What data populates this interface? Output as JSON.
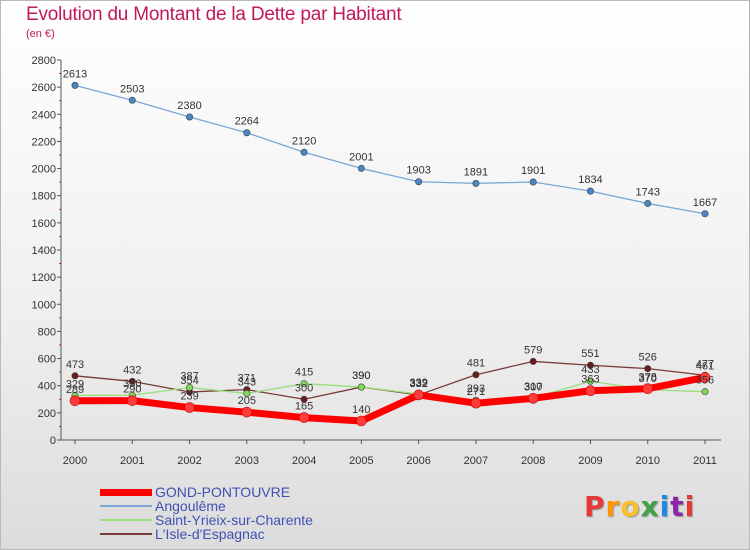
{
  "title": "Evolution du Montant de la Dette par Habitant",
  "unit": "(en €)",
  "logo": {
    "text": "Proxiti",
    "colors": [
      "#e53935",
      "#ff9800",
      "#fbc02d",
      "#43a047",
      "#1e88e5",
      "#8e24aa",
      "#e53935"
    ]
  },
  "chart_data": {
    "type": "line",
    "x": [
      "2000",
      "2001",
      "2002",
      "2003",
      "2004",
      "2005",
      "2006",
      "2007",
      "2008",
      "2009",
      "2010",
      "2011"
    ],
    "ylim": [
      0,
      2800
    ],
    "yticks": [
      0,
      200,
      400,
      600,
      800,
      1000,
      1200,
      1400,
      1600,
      1800,
      2000,
      2200,
      2400,
      2600,
      2800
    ],
    "grid": false,
    "legend_position": "bottom-left",
    "series": [
      {
        "name": "GOND-PONTOUVRE",
        "color": "#ff0000",
        "marker": "#ff3b3b",
        "width": 7,
        "values": [
          289,
          290,
          239,
          205,
          165,
          140,
          332,
          271,
          307,
          363,
          378,
          461
        ]
      },
      {
        "name": "Angoulême",
        "color": "#7aa7d6",
        "marker": "#4a86c5",
        "width": 1.3,
        "values": [
          2613,
          2503,
          2380,
          2264,
          2120,
          2001,
          1903,
          1891,
          1901,
          1834,
          1743,
          1667
        ]
      },
      {
        "name": "Saint-Yrieix-sur-Charente",
        "color": "#98e07a",
        "marker": "#7ed957",
        "width": 1.3,
        "values": [
          329,
          330,
          387,
          343,
          415,
          390,
          339,
          293,
          310,
          433,
          370,
          356
        ]
      },
      {
        "name": "L'Isle-d'Espagnac",
        "color": "#7a3b3b",
        "marker": "#6b1c1c",
        "width": 1.3,
        "values": [
          473,
          432,
          354,
          371,
          300,
          390,
          332,
          481,
          579,
          551,
          526,
          477
        ]
      }
    ]
  }
}
